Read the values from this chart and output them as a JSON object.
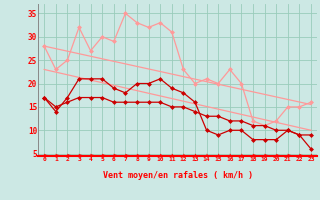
{
  "bg_color": "#cce8e4",
  "grid_color": "#99ccbb",
  "line_color_dark": "#cc0000",
  "line_color_light": "#ff9999",
  "xlabel": "Vent moyen/en rafales ( km/h )",
  "ylabel_ticks": [
    5,
    10,
    15,
    20,
    25,
    30,
    35
  ],
  "xlim": [
    -0.5,
    23.5
  ],
  "ylim": [
    4.5,
    37
  ],
  "x": [
    0,
    1,
    2,
    3,
    4,
    5,
    6,
    7,
    8,
    9,
    10,
    11,
    12,
    13,
    14,
    15,
    16,
    17,
    18,
    19,
    20,
    21,
    22,
    23
  ],
  "line1_light": [
    28,
    23,
    25,
    32,
    27,
    30,
    29,
    35,
    33,
    32,
    33,
    31,
    23,
    20,
    21,
    20,
    23,
    20,
    12,
    11,
    12,
    15,
    15,
    16
  ],
  "line2_dark": [
    17,
    14,
    17,
    21,
    21,
    21,
    19,
    18,
    20,
    20,
    21,
    19,
    18,
    16,
    10,
    9,
    10,
    10,
    8,
    8,
    8,
    10,
    9,
    6
  ],
  "line3_dark": [
    17,
    15,
    16,
    17,
    17,
    17,
    16,
    16,
    16,
    16,
    16,
    15,
    15,
    14,
    13,
    13,
    12,
    12,
    11,
    11,
    10,
    10,
    9,
    9
  ],
  "line4_light_straight": [
    [
      0,
      28
    ],
    [
      23,
      15.5
    ]
  ],
  "line5_light_straight": [
    [
      0,
      23
    ],
    [
      23,
      10
    ]
  ],
  "arrow_angles_deg": [
    90,
    90,
    90,
    90,
    90,
    90,
    90,
    90,
    80,
    75,
    70,
    65,
    60,
    55,
    50,
    45,
    40,
    45,
    90,
    90,
    90,
    90,
    90,
    45
  ]
}
